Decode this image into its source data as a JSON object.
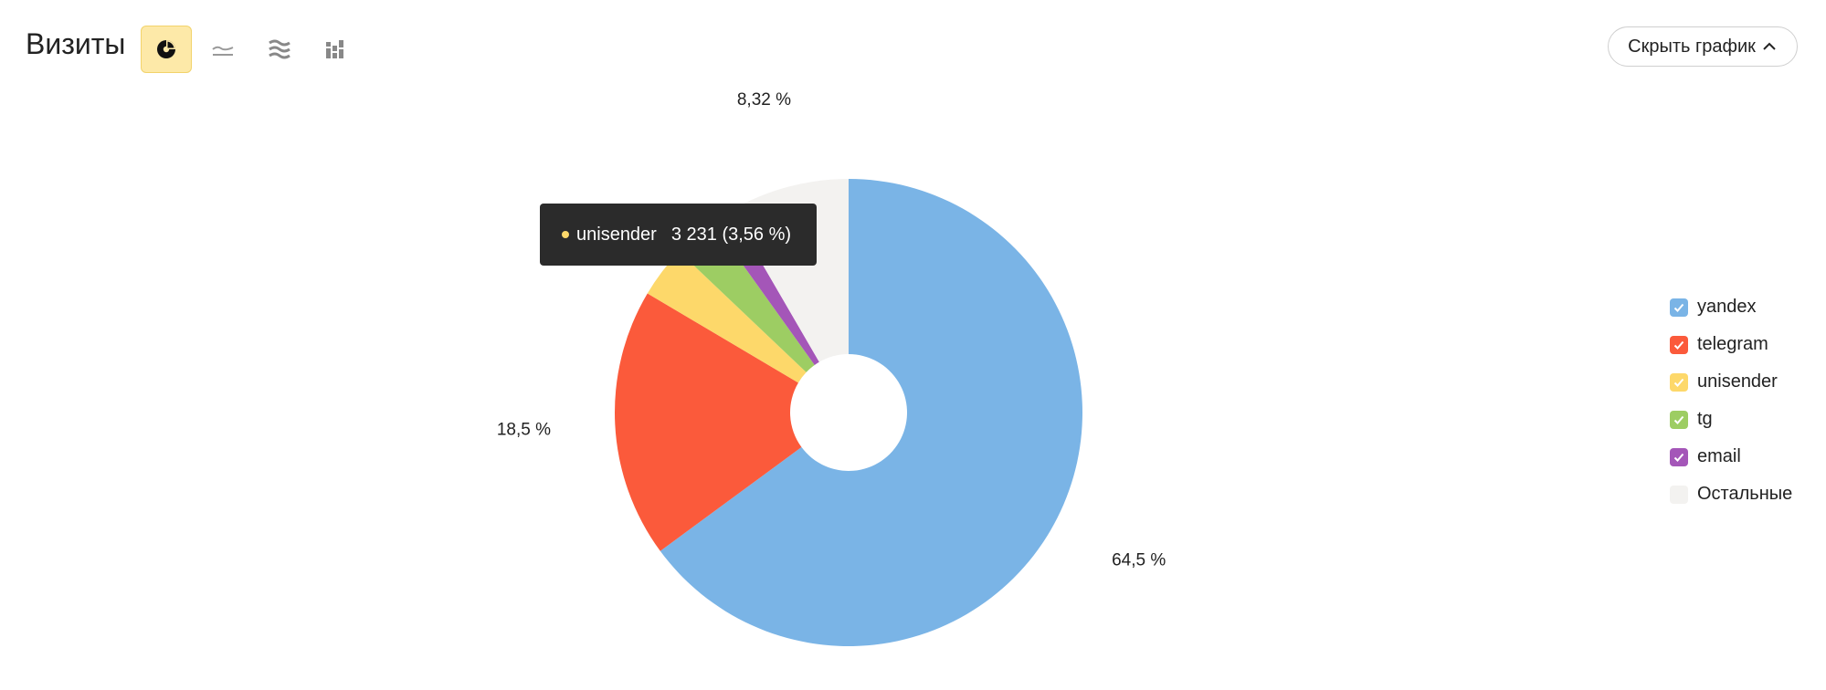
{
  "header": {
    "title": "Визиты",
    "hide_button_label": "Скрыть график",
    "chart_type_buttons": [
      {
        "icon": "pie-chart-icon",
        "active": true
      },
      {
        "icon": "line-chart-icon",
        "active": false
      },
      {
        "icon": "area-chart-icon",
        "active": false
      },
      {
        "icon": "bar-chart-icon",
        "active": false
      }
    ]
  },
  "tooltip": {
    "name": "unisender",
    "value": "3 231 (3,56 %)",
    "color": "#fdd86a"
  },
  "chart_data": {
    "type": "pie",
    "title": "Визиты",
    "slices": [
      {
        "name": "yandex",
        "value": 64.5,
        "label": "64,5 %",
        "color": "#7ab4e6"
      },
      {
        "name": "telegram",
        "value": 18.5,
        "label": "18,5 %",
        "color": "#fb5a3b"
      },
      {
        "name": "unisender",
        "value": 3.56,
        "label": "",
        "color": "#fdd86a"
      },
      {
        "name": "tg",
        "value": 3.0,
        "label": "",
        "color": "#9dcd63"
      },
      {
        "name": "email",
        "value": 1.5,
        "label": "",
        "color": "#a456b8"
      },
      {
        "name": "Остальные",
        "value": 8.32,
        "label": "8,32 %",
        "color": "#f3f2f0"
      }
    ],
    "legend": [
      {
        "name": "yandex",
        "color": "#7ab4e6",
        "checked": true
      },
      {
        "name": "telegram",
        "color": "#fb5a3b",
        "checked": true
      },
      {
        "name": "unisender",
        "color": "#fdd86a",
        "checked": true
      },
      {
        "name": "tg",
        "color": "#9dcd63",
        "checked": true
      },
      {
        "name": "email",
        "color": "#a456b8",
        "checked": true
      },
      {
        "name": "Остальные",
        "color": "#f3f2f0",
        "checked": false
      }
    ],
    "legend_position": "right"
  }
}
